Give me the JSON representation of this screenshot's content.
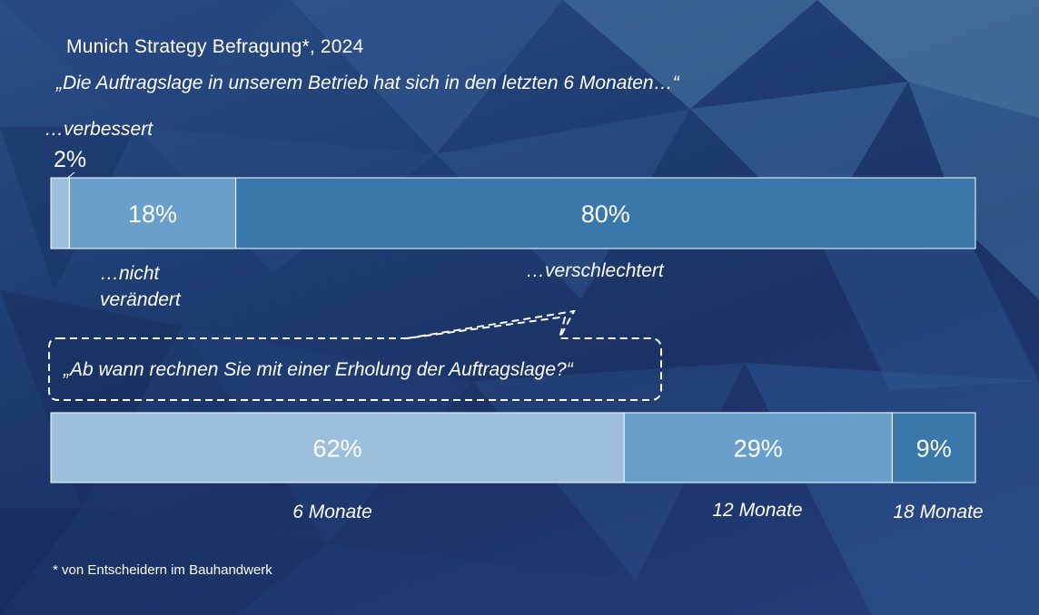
{
  "title": "Munich Strategy Befragung*, 2024",
  "question_1": "„Die Auftragslage in unserem Betrieb hat sich in den letzten 6 Monaten…“",
  "question_2": "„Ab wann rechnen Sie mit einer Erholung der Auftragslage?“",
  "footnote": "* von Entscheidern im Bauhandwerk",
  "colors": {
    "light": "#9cbfdc",
    "medium": "#6a9fcc",
    "dark": "#3a78ab",
    "background": "#1e3d72"
  },
  "chart_data": [
    {
      "type": "bar",
      "orientation": "horizontal",
      "stacked": true,
      "title": "„Die Auftragslage in unserem Betrieb hat sich in den letzten 6 Monaten…“",
      "categories": [
        "…verbessert",
        "…nicht verändert",
        "…verschlechtert"
      ],
      "values": [
        2,
        18,
        80
      ],
      "data_labels": [
        "2%",
        "18%",
        "80%"
      ],
      "unit": "%",
      "colors": [
        "#9cbfdc",
        "#6a9fcc",
        "#3a78ab"
      ]
    },
    {
      "type": "bar",
      "orientation": "horizontal",
      "stacked": true,
      "title": "„Ab wann rechnen Sie mit einer Erholung der Auftragslage?“",
      "categories": [
        "6 Monate",
        "12 Monate",
        "18 Monate"
      ],
      "values": [
        62,
        29,
        9
      ],
      "data_labels": [
        "62%",
        "29%",
        "9%"
      ],
      "unit": "%",
      "colors": [
        "#9cbfdc",
        "#6a9fcc",
        "#3a78ab"
      ]
    }
  ]
}
